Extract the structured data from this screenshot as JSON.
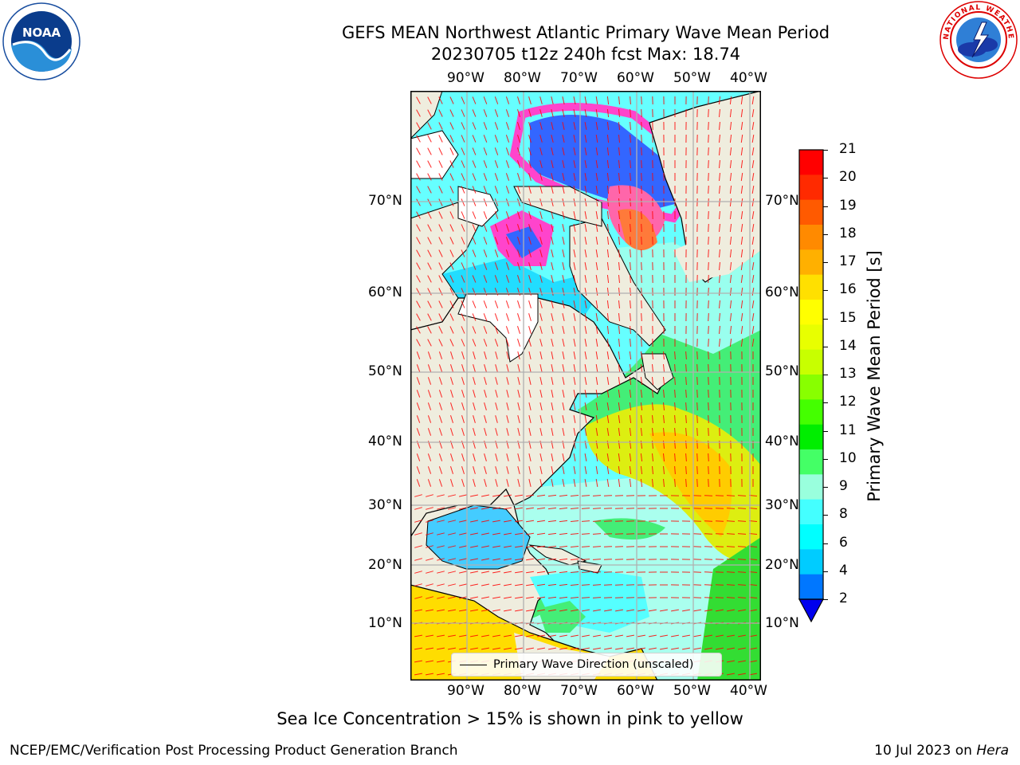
{
  "header": {
    "title_line1": "GEFS MEAN Northwest Atlantic Primary Wave Mean Period",
    "title_line2": "20230705 t12z 240h fcst   Max: 18.74"
  },
  "logos": {
    "left": "noaa-logo",
    "left_wordmark": "NOAA",
    "right": "national-weather-service-logo"
  },
  "map": {
    "lon_labels": [
      "90°W",
      "80°W",
      "70°W",
      "60°W",
      "50°W",
      "40°W"
    ],
    "lat_labels": [
      "70°N",
      "60°N",
      "50°N",
      "40°N",
      "30°N",
      "20°N",
      "10°N"
    ],
    "land_color": "#efedde",
    "ocean_seaice_color": "#ffffff",
    "arrow_color": "#ff0000",
    "coast_color": "#000000",
    "grid_color": "#b0b0b0"
  },
  "legend": {
    "label": "Primary Wave Direction (unscaled)"
  },
  "colorbar": {
    "label": "Primary Wave Mean Period [s]",
    "ticks": [
      "21",
      "20",
      "19",
      "18",
      "17",
      "16",
      "15",
      "14",
      "13",
      "12",
      "11",
      "10",
      "9",
      "8",
      "6",
      "4",
      "2"
    ],
    "colors": [
      "#ff0000",
      "#ff2a00",
      "#ff5a00",
      "#ff8a00",
      "#ffb000",
      "#ffe000",
      "#ffff00",
      "#e8ff00",
      "#c8ff00",
      "#88ff00",
      "#44ff00",
      "#00ee00",
      "#44ff66",
      "#99ffdd",
      "#44ffff",
      "#00ffff",
      "#00ccff",
      "#0077ff"
    ],
    "extend_color": "#0000ee"
  },
  "sea_ice_note": "Sea Ice Concentration > 15% is shown in pink to yellow",
  "footer": {
    "left": "NCEP/EMC/Verification Post Processing Product Generation Branch",
    "right_prefix": "10 Jul 2023 on ",
    "right_host": "Hera"
  }
}
